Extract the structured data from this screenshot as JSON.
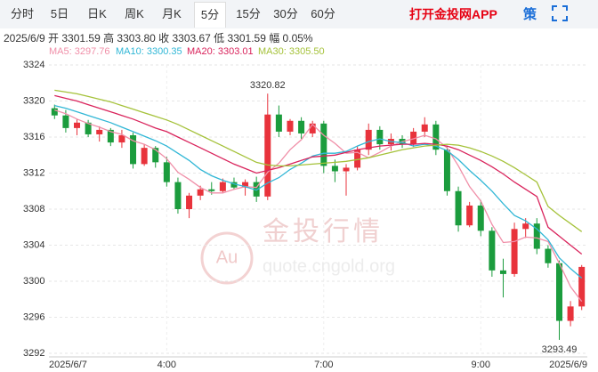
{
  "header": {
    "tabs": [
      "分时",
      "5日",
      "日K",
      "周K",
      "月K",
      "5分",
      "15分",
      "30分",
      "60分"
    ],
    "active_tab": 5,
    "app_link": "打开金投网APP",
    "strategy": "策",
    "info": "2025/6/9 开 3301.59 高 3303.80 收 3303.67 低 3301.59 幅 0.05%"
  },
  "watermark": {
    "logo": "Au",
    "brand": "金投行情",
    "url": "quote.cngold.org"
  },
  "chart_data": {
    "type": "candlestick",
    "categories": [
      "2025/6/7",
      null,
      null,
      null,
      null,
      null,
      null,
      null,
      null,
      null,
      "4:00",
      null,
      null,
      null,
      null,
      null,
      null,
      null,
      null,
      null,
      null,
      null,
      null,
      null,
      "7:00",
      null,
      null,
      null,
      null,
      null,
      null,
      null,
      null,
      null,
      null,
      null,
      null,
      null,
      "9:00",
      null,
      null,
      null,
      null,
      null,
      null,
      null,
      null,
      "2025/6/9"
    ],
    "open": [
      3319.2,
      3318.4,
      3317.0,
      3317.6,
      3316.3,
      3316.8,
      3315.4,
      3316.2,
      3313.0,
      3314.8,
      3313.2,
      3311.0,
      3308.0,
      3309.5,
      3310.2,
      3310.0,
      3311.0,
      3310.4,
      3311.0,
      3309.4,
      3318.5,
      3316.6,
      3317.8,
      3316.4,
      3317.5,
      3312.8,
      3312.2,
      3312.6,
      3314.6,
      3316.8,
      3315.2,
      3315.8,
      3315.2,
      3316.6,
      3317.4,
      3314.6,
      3310.0,
      3306.2,
      3308.4,
      3305.6,
      3301.2,
      3300.8,
      3305.8,
      3306.4,
      3303.6,
      3302.0,
      3295.6,
      3297.2
    ],
    "high": [
      3319.6,
      3319.0,
      3318.0,
      3317.9,
      3317.2,
      3317.0,
      3316.8,
      3316.5,
      3315.2,
      3315.0,
      3313.8,
      3311.5,
      3309.8,
      3310.6,
      3311.0,
      3311.4,
      3311.5,
      3311.3,
      3311.6,
      3320.82,
      3319.5,
      3318.0,
      3318.2,
      3317.8,
      3317.8,
      3313.5,
      3313.0,
      3315.0,
      3317.5,
      3317.2,
      3316.4,
      3316.2,
      3317.0,
      3318.2,
      3317.8,
      3315.0,
      3310.5,
      3308.8,
      3309.0,
      3306.0,
      3302.5,
      3306.5,
      3307.0,
      3307.0,
      3304.0,
      3302.3,
      3297.8,
      3301.8
    ],
    "low": [
      3318.0,
      3316.5,
      3316.2,
      3316.0,
      3315.5,
      3315.0,
      3314.8,
      3312.5,
      3312.8,
      3312.6,
      3310.5,
      3307.5,
      3307.0,
      3309.0,
      3309.6,
      3309.8,
      3310.2,
      3309.5,
      3308.8,
      3309.0,
      3316.0,
      3316.2,
      3315.8,
      3316.0,
      3312.0,
      3311.0,
      3309.5,
      3312.3,
      3314.0,
      3314.6,
      3314.5,
      3314.8,
      3314.9,
      3316.0,
      3314.0,
      3309.5,
      3305.5,
      3306.0,
      3305.0,
      3300.5,
      3298.2,
      3300.5,
      3304.8,
      3303.0,
      3301.5,
      3293.49,
      3295.0,
      3296.8
    ],
    "close": [
      3318.4,
      3317.0,
      3317.6,
      3316.3,
      3316.8,
      3315.4,
      3316.2,
      3313.0,
      3314.8,
      3313.2,
      3311.0,
      3308.0,
      3309.5,
      3310.2,
      3310.0,
      3311.0,
      3310.4,
      3311.0,
      3309.4,
      3318.5,
      3316.6,
      3317.8,
      3316.4,
      3317.5,
      3312.8,
      3312.2,
      3312.6,
      3314.6,
      3316.8,
      3315.2,
      3315.8,
      3315.2,
      3316.6,
      3317.4,
      3314.6,
      3310.0,
      3306.2,
      3308.4,
      3305.6,
      3301.2,
      3300.8,
      3305.8,
      3306.4,
      3303.6,
      3302.0,
      3295.6,
      3297.2,
      3301.59
    ],
    "up_color": "#e8333c",
    "down_color": "#1b9c3d",
    "series": [
      {
        "name": "MA5: 3297.76",
        "color": "#f08fa8",
        "values": [
          3319,
          3318.6,
          3318,
          3317.5,
          3317.1,
          3316.6,
          3316.3,
          3315.6,
          3315.2,
          3314.6,
          3313.6,
          3312.1,
          3311.3,
          3310.4,
          3309.8,
          3309.8,
          3310.2,
          3310.5,
          3310.4,
          3312.1,
          3313.1,
          3314.6,
          3315.7,
          3317.4,
          3316.2,
          3315.3,
          3314.2,
          3314.3,
          3313.7,
          3314.3,
          3315,
          3315.5,
          3315.8,
          3316.2,
          3315.8,
          3314.8,
          3312.8,
          3310.5,
          3308.9,
          3306.3,
          3304.3,
          3304.4,
          3304.9,
          3304.8,
          3304.4,
          3302.0,
          3299.4,
          3297.76
        ]
      },
      {
        "name": "MA10: 3300.35",
        "color": "#31b7d6",
        "values": [
          3319.5,
          3319.2,
          3318.8,
          3318.4,
          3318,
          3317.6,
          3317.1,
          3316.6,
          3316.1,
          3315.6,
          3315,
          3314.2,
          3313.4,
          3312.4,
          3311.7,
          3311.2,
          3310.8,
          3310.5,
          3310.1,
          3310.9,
          3311.5,
          3312.4,
          3313.1,
          3313.9,
          3314.2,
          3314.2,
          3314.4,
          3315,
          3315.5,
          3315.8,
          3315.5,
          3315.4,
          3315,
          3315.2,
          3315,
          3314.5,
          3313.5,
          3312.3,
          3311.2,
          3310,
          3308.6,
          3307.3,
          3306.7,
          3305.8,
          3304.6,
          3302.6,
          3301.4,
          3300.35
        ]
      },
      {
        "name": "MA20: 3303.01",
        "color": "#d9245c",
        "values": [
          3320.6,
          3320.3,
          3320,
          3319.6,
          3319.2,
          3318.8,
          3318.4,
          3318,
          3317.5,
          3317,
          3316.6,
          3316,
          3315.4,
          3314.8,
          3314.2,
          3313.6,
          3313,
          3312.5,
          3312,
          3312.3,
          3312.6,
          3313,
          3313.4,
          3313.8,
          3313.9,
          3314,
          3314.3,
          3314.6,
          3314.8,
          3315,
          3315.1,
          3315.2,
          3315.2,
          3315.3,
          3315.2,
          3315,
          3314.6,
          3314,
          3313.4,
          3312.7,
          3311.9,
          3311,
          3310.2,
          3309.4,
          3306.0,
          3305.0,
          3304.0,
          3303.01
        ]
      },
      {
        "name": "MA30: 3305.50",
        "color": "#a5c23a",
        "values": [
          3321.2,
          3321,
          3320.8,
          3320.5,
          3320.2,
          3319.9,
          3319.5,
          3319.1,
          3318.7,
          3318.3,
          3317.9,
          3317.4,
          3316.8,
          3316.2,
          3315.6,
          3315,
          3314.4,
          3313.8,
          3313.2,
          3312.9,
          3312.8,
          3312.8,
          3312.9,
          3313,
          3313.1,
          3313.2,
          3313.3,
          3313.5,
          3313.7,
          3314,
          3314.3,
          3314.6,
          3314.8,
          3315,
          3315.1,
          3315.2,
          3315.1,
          3314.8,
          3314.4,
          3313.9,
          3313.3,
          3312.6,
          3311.8,
          3311,
          3308.3,
          3307.3,
          3306.4,
          3305.5
        ]
      }
    ],
    "annotations": {
      "max": "3320.82",
      "min": "3293.49"
    },
    "ylim": [
      3292,
      3324
    ],
    "yticks": [
      3292,
      3296,
      3300,
      3304,
      3308,
      3312,
      3316,
      3320,
      3324
    ],
    "grid": true
  }
}
